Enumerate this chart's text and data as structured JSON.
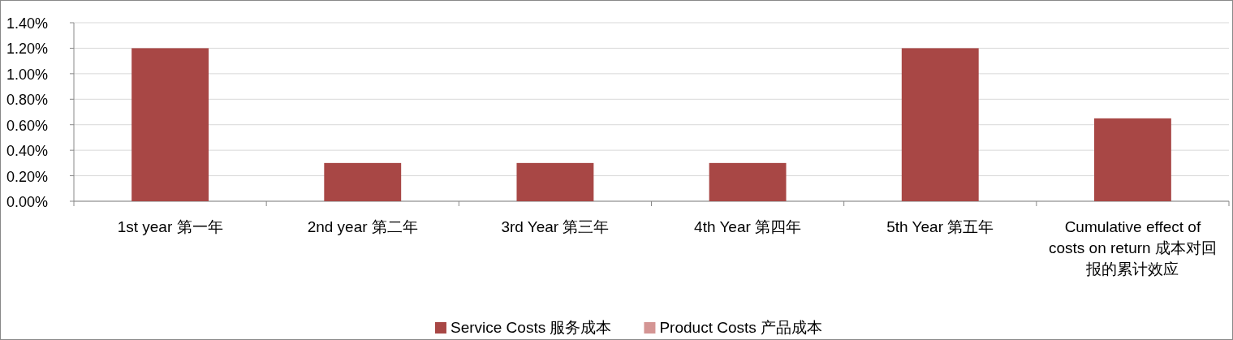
{
  "chart_data": {
    "type": "bar",
    "stacked": true,
    "categories": [
      "1st year  第一年",
      "2nd year  第二年",
      "3rd Year  第三年",
      "4th Year  第四年",
      "5th Year  第五年",
      "Cumulative effect of costs on return 成本对回报的累计效应"
    ],
    "series": [
      {
        "name": "Service Costs 服务成本",
        "color": "#a84745",
        "values": [
          1.2,
          0.3,
          0.3,
          0.3,
          1.2,
          0.65
        ]
      },
      {
        "name": "Product Costs 产品成本",
        "color": "#d49594",
        "values": [
          0,
          0,
          0,
          0,
          0,
          0
        ]
      }
    ],
    "ylim": [
      0,
      1.4
    ],
    "yticks": [
      {
        "value": 0,
        "label": "0.00%"
      },
      {
        "value": 0.2,
        "label": "0.20%"
      },
      {
        "value": 0.4,
        "label": "0.40%"
      },
      {
        "value": 0.6,
        "label": "0.60%"
      },
      {
        "value": 0.8,
        "label": "0.80%"
      },
      {
        "value": 1.0,
        "label": "1.00%"
      },
      {
        "value": 1.2,
        "label": "1.20%"
      },
      {
        "value": 1.4,
        "label": "1.40%"
      }
    ],
    "grid": "y",
    "legend": "bottom"
  }
}
